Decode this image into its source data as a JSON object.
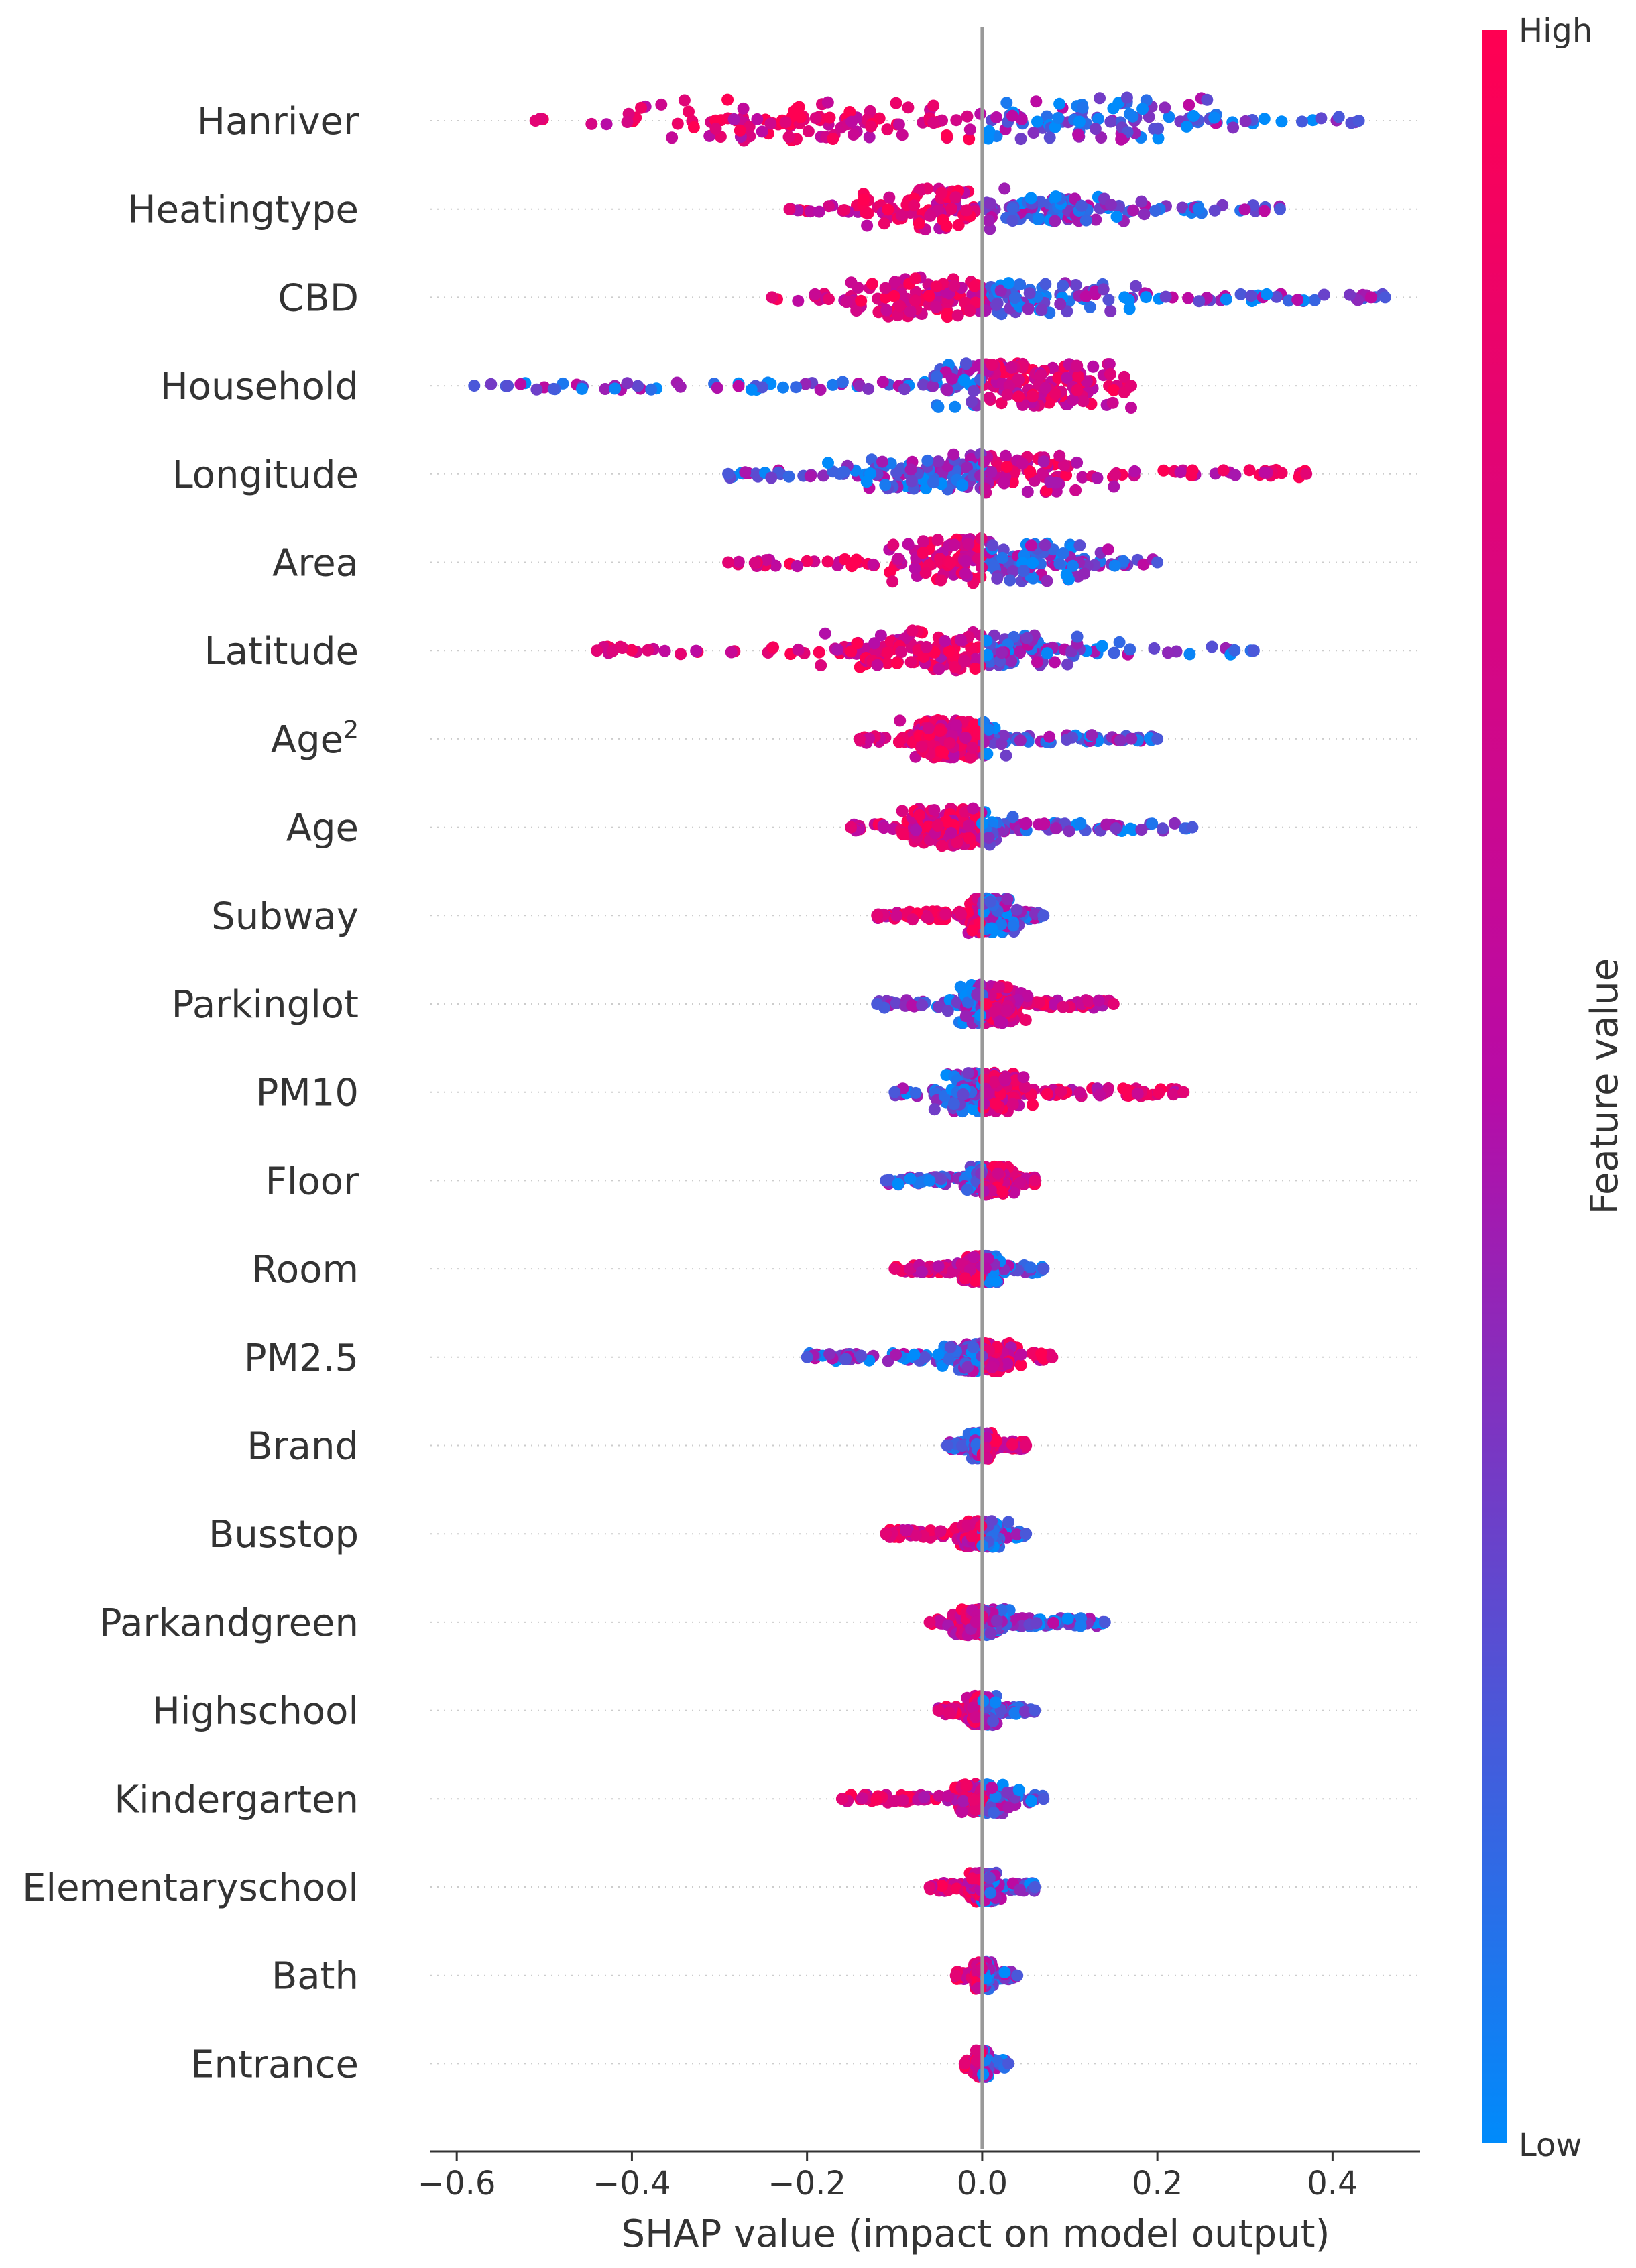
{
  "chart_data": {
    "type": "scatter",
    "xlabel": "SHAP value (impact on model output)",
    "xlim": [
      -0.63,
      0.5
    ],
    "xticks": [
      -0.6,
      -0.4,
      -0.2,
      0.0,
      0.2,
      0.4
    ],
    "xtick_labels": [
      "−0.6",
      "−0.4",
      "−0.2",
      "0.0",
      "0.2",
      "0.4"
    ],
    "colorbar": {
      "label": "Feature value",
      "high": "High",
      "low": "Low",
      "high_color": "#ff0052",
      "mid_color": "#b80ba6",
      "low_color": "#008bfb"
    },
    "features": [
      {
        "name": "Hanriver",
        "min": -0.51,
        "max": 0.43,
        "spread": 0.95,
        "high_side": "neg",
        "blobs": [
          {
            "x": -0.27,
            "w": 0.9
          },
          {
            "x": -0.12,
            "w": 0.8
          },
          {
            "x": 0.08,
            "w": 1.0
          },
          {
            "x": 0.15,
            "w": 0.95
          }
        ]
      },
      {
        "name": "Heatingtype",
        "min": -0.22,
        "max": 0.34,
        "spread": 0.7,
        "high_side": "neg",
        "blobs": [
          {
            "x": -0.05,
            "w": 1.0
          },
          {
            "x": 0.09,
            "w": 0.6
          }
        ]
      },
      {
        "name": "CBD",
        "min": -0.24,
        "max": 0.46,
        "spread": 0.8,
        "high_side": "neg",
        "blobs": [
          {
            "x": -0.08,
            "w": 0.9
          },
          {
            "x": 0.05,
            "w": 0.7
          }
        ]
      },
      {
        "name": "Household",
        "min": -0.58,
        "max": 0.17,
        "spread": 0.8,
        "high_side": "pos",
        "blobs": [
          {
            "x": 0.05,
            "w": 1.0
          }
        ]
      },
      {
        "name": "Longitude",
        "min": -0.29,
        "max": 0.37,
        "spread": 0.8,
        "high_side": "pos",
        "blobs": [
          {
            "x": -0.07,
            "w": 0.7
          },
          {
            "x": 0.04,
            "w": 0.9
          }
        ]
      },
      {
        "name": "Area",
        "min": -0.29,
        "max": 0.2,
        "spread": 0.9,
        "high_side": "neg",
        "blobs": [
          {
            "x": -0.03,
            "w": 1.0
          },
          {
            "x": 0.07,
            "w": 0.8
          }
        ]
      },
      {
        "name": "Latitude",
        "min": -0.44,
        "max": 0.31,
        "spread": 0.8,
        "high_side": "neg",
        "blobs": [
          {
            "x": -0.08,
            "w": 0.9
          },
          {
            "x": 0.03,
            "w": 0.7
          }
        ]
      },
      {
        "name": "Age",
        "sup": "2",
        "min": -0.14,
        "max": 0.2,
        "spread": 0.7,
        "high_side": "neg",
        "blobs": [
          {
            "x": -0.03,
            "w": 0.9
          }
        ]
      },
      {
        "name": "Age",
        "min": -0.15,
        "max": 0.24,
        "spread": 0.7,
        "high_side": "neg",
        "blobs": [
          {
            "x": -0.03,
            "w": 0.9
          }
        ]
      },
      {
        "name": "Subway",
        "min": -0.12,
        "max": 0.07,
        "spread": 0.6,
        "high_side": "neg",
        "blobs": [
          {
            "x": 0.01,
            "w": 0.9
          }
        ]
      },
      {
        "name": "Parkinglot",
        "min": -0.12,
        "max": 0.15,
        "spread": 0.6,
        "high_side": "pos",
        "blobs": [
          {
            "x": 0.01,
            "w": 1.0
          }
        ]
      },
      {
        "name": "PM10",
        "min": -0.1,
        "max": 0.23,
        "spread": 0.6,
        "high_side": "pos",
        "blobs": [
          {
            "x": 0.0,
            "w": 1.0
          }
        ]
      },
      {
        "name": "Floor",
        "min": -0.11,
        "max": 0.06,
        "spread": 0.5,
        "high_side": "pos",
        "blobs": [
          {
            "x": 0.01,
            "w": 0.8
          }
        ]
      },
      {
        "name": "Room",
        "min": -0.1,
        "max": 0.07,
        "spread": 0.4,
        "high_side": "neg",
        "blobs": [
          {
            "x": 0.0,
            "w": 0.8
          }
        ]
      },
      {
        "name": "PM2.5",
        "min": -0.2,
        "max": 0.08,
        "spread": 0.5,
        "high_side": "pos",
        "blobs": [
          {
            "x": 0.0,
            "w": 0.8
          }
        ]
      },
      {
        "name": "Brand",
        "min": -0.04,
        "max": 0.05,
        "spread": 0.4,
        "high_side": "pos",
        "blobs": [
          {
            "x": 0.0,
            "w": 0.8
          }
        ]
      },
      {
        "name": "Busstop",
        "min": -0.11,
        "max": 0.05,
        "spread": 0.4,
        "high_side": "neg",
        "blobs": [
          {
            "x": 0.0,
            "w": 0.8
          }
        ]
      },
      {
        "name": "Parkandgreen",
        "min": -0.06,
        "max": 0.14,
        "spread": 0.4,
        "high_side": "neg",
        "blobs": [
          {
            "x": 0.0,
            "w": 0.8
          }
        ]
      },
      {
        "name": "Highschool",
        "min": -0.05,
        "max": 0.06,
        "spread": 0.4,
        "high_side": "neg",
        "blobs": [
          {
            "x": 0.0,
            "w": 0.9
          }
        ]
      },
      {
        "name": "Kindergarten",
        "min": -0.16,
        "max": 0.07,
        "spread": 0.4,
        "high_side": "neg",
        "blobs": [
          {
            "x": 0.0,
            "w": 0.9
          }
        ]
      },
      {
        "name": "Elementaryschool",
        "min": -0.06,
        "max": 0.06,
        "spread": 0.4,
        "high_side": "neg",
        "blobs": [
          {
            "x": 0.0,
            "w": 0.9
          }
        ]
      },
      {
        "name": "Bath",
        "min": -0.03,
        "max": 0.04,
        "spread": 0.35,
        "high_side": "neg",
        "blobs": [
          {
            "x": 0.0,
            "w": 0.9
          }
        ]
      },
      {
        "name": "Entrance",
        "min": -0.02,
        "max": 0.03,
        "spread": 0.3,
        "high_side": "neg",
        "blobs": [
          {
            "x": 0.0,
            "w": 0.9
          }
        ]
      }
    ]
  }
}
